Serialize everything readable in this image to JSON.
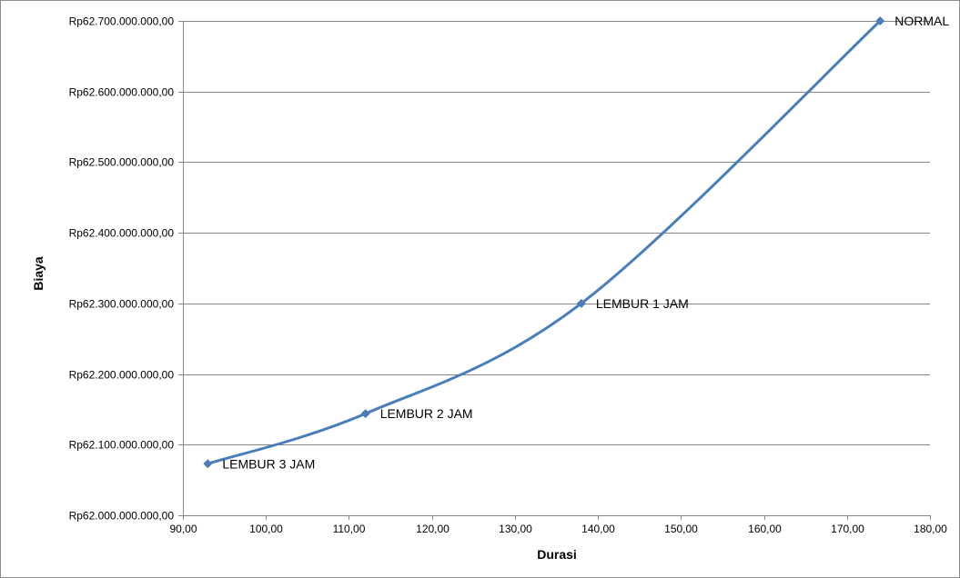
{
  "chart_data": {
    "type": "scatter",
    "title": "",
    "xlabel": "Durasi",
    "ylabel": "Biaya",
    "xlim": [
      90,
      180
    ],
    "ylim": [
      62000000000,
      62700000000
    ],
    "x_ticks": [
      90,
      100,
      110,
      120,
      130,
      140,
      150,
      160,
      170,
      180
    ],
    "x_tick_labels": [
      "90,00",
      "100,00",
      "110,00",
      "120,00",
      "130,00",
      "140,00",
      "150,00",
      "160,00",
      "170,00",
      "180,00"
    ],
    "y_ticks": [
      62000000000,
      62100000000,
      62200000000,
      62300000000,
      62400000000,
      62500000000,
      62600000000,
      62700000000
    ],
    "y_tick_labels": [
      "Rp62.000.000.000,00",
      "Rp62.100.000.000,00",
      "Rp62.200.000.000,00",
      "Rp62.300.000.000,00",
      "Rp62.400.000.000,00",
      "Rp62.500.000.000,00",
      "Rp62.600.000.000,00",
      "Rp62.700.000.000,00"
    ],
    "grid": "horizontal",
    "smooth": true,
    "series": [
      {
        "color": "#4a7ebb",
        "marker": "diamond",
        "points": [
          {
            "x": 93,
            "y": 62073000000,
            "label": "LEMBUR 3 JAM"
          },
          {
            "x": 112,
            "y": 62144000000,
            "label": "LEMBUR 2 JAM"
          },
          {
            "x": 138,
            "y": 62300000000,
            "label": "LEMBUR 1 JAM"
          },
          {
            "x": 174,
            "y": 62700000000,
            "label": "NORMAL"
          }
        ]
      }
    ]
  }
}
